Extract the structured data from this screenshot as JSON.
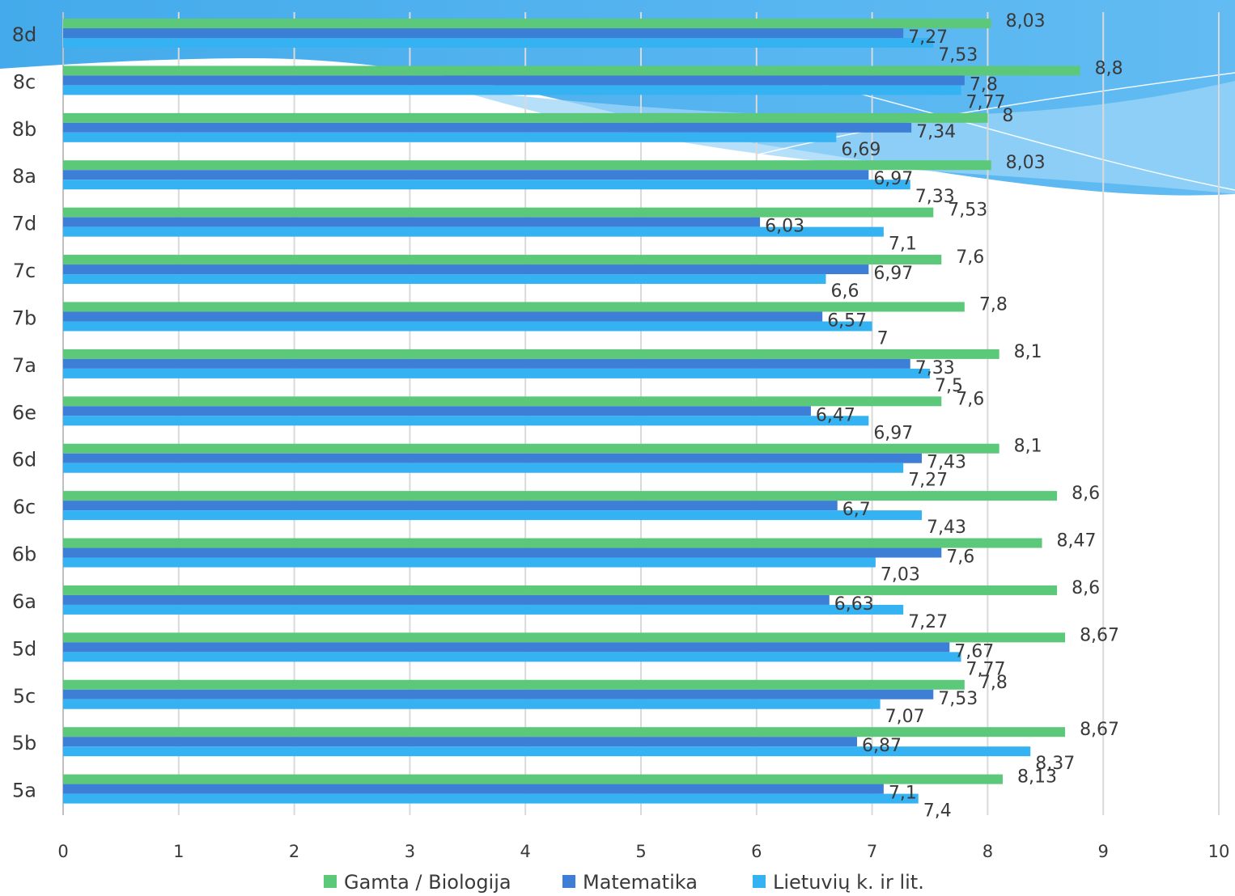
{
  "chart_data": {
    "type": "bar",
    "orientation": "horizontal",
    "categories": [
      "8d",
      "8c",
      "8b",
      "8a",
      "7d",
      "7c",
      "7b",
      "7a",
      "6e",
      "6d",
      "6c",
      "6b",
      "6a",
      "5d",
      "5c",
      "5b",
      "5a"
    ],
    "xlim": [
      0,
      10
    ],
    "ticks": [
      "0",
      "1",
      "2",
      "3",
      "4",
      "5",
      "6",
      "7",
      "8",
      "9",
      "10"
    ],
    "grid": true,
    "legend_position": "bottom",
    "series": [
      {
        "name": "Gamta / Biologija",
        "color": "#5cc97a",
        "values": [
          8.03,
          8.8,
          8,
          8.03,
          7.53,
          7.6,
          7.8,
          8.1,
          7.6,
          8.1,
          8.6,
          8.47,
          8.6,
          8.67,
          7.8,
          8.67,
          8.13
        ],
        "labels": [
          "8,03",
          "8,8",
          "8",
          "8,03",
          "7,53",
          "7,6",
          "7,8",
          "8,1",
          "7,6",
          "8,1",
          "8,6",
          "8,47",
          "8,6",
          "8,67",
          "7,8",
          "8,67",
          "8,13"
        ]
      },
      {
        "name": "Matematika",
        "color": "#3d7fd6",
        "values": [
          7.27,
          7.8,
          7.34,
          6.97,
          6.03,
          6.97,
          6.57,
          7.33,
          6.47,
          7.43,
          6.7,
          7.6,
          6.63,
          7.67,
          7.53,
          6.87,
          7.1
        ],
        "labels": [
          "7,27",
          "7,8",
          "7,34",
          "6,97",
          "6,03",
          "6,97",
          "6,57",
          "7,33",
          "6,47",
          "7,43",
          "6,7",
          "7,6",
          "6,63",
          "7,67",
          "7,53",
          "6,87",
          "7,1"
        ]
      },
      {
        "name": "Lietuvių k. ir lit.",
        "color": "#35b2f2",
        "values": [
          7.53,
          7.77,
          6.69,
          7.33,
          7.1,
          6.6,
          7,
          7.5,
          6.97,
          7.27,
          7.43,
          7.03,
          7.27,
          7.77,
          7.07,
          8.37,
          7.4
        ],
        "labels": [
          "7,53",
          "7,77",
          "6,69",
          "7,33",
          "7,1",
          "6,6",
          "7",
          "7,5",
          "6,97",
          "7,27",
          "7,43",
          "7,03",
          "7,27",
          "7,77",
          "7,07",
          "8,37",
          "7,4"
        ]
      }
    ]
  }
}
